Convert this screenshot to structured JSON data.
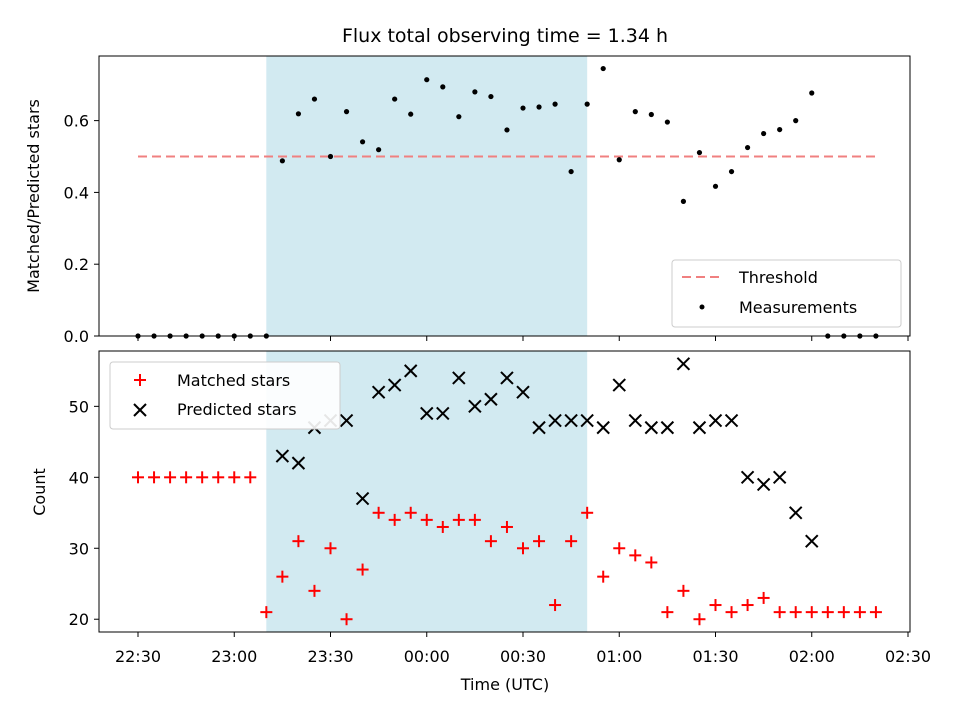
{
  "chart_data": [
    {
      "type": "scatter",
      "title": "Flux total observing time = 1.34 h",
      "ylabel": "Matched/Predicted stars",
      "xlabel": "",
      "ylim": [
        0,
        0.78
      ],
      "yticks": [
        0.0,
        0.2,
        0.4,
        0.6
      ],
      "ytick_labels": [
        "0.0",
        "0.2",
        "0.4",
        "0.6"
      ],
      "threshold": {
        "name": "Threshold",
        "y": 0.5,
        "x_start": "22:30",
        "x_end": "02:20",
        "color": "#f08080",
        "style": "dashed"
      },
      "observing_window": {
        "start": "23:10",
        "end": "00:50",
        "color": "#add8e6"
      },
      "legend": {
        "position": "lower-right",
        "entries": [
          "Threshold",
          "Measurements"
        ]
      },
      "series": [
        {
          "name": "Measurements",
          "color": "#000000",
          "marker": "dot",
          "x": [
            "22:30",
            "22:35",
            "22:40",
            "22:45",
            "22:50",
            "22:55",
            "23:00",
            "23:05",
            "23:10",
            "23:15",
            "23:20",
            "23:25",
            "23:30",
            "23:35",
            "23:40",
            "23:45",
            "23:50",
            "23:55",
            "00:00",
            "00:05",
            "00:10",
            "00:15",
            "00:20",
            "00:25",
            "00:30",
            "00:35",
            "00:40",
            "00:45",
            "00:50",
            "00:55",
            "01:00",
            "01:05",
            "01:10",
            "01:15",
            "01:20",
            "01:25",
            "01:30",
            "01:35",
            "01:40",
            "01:45",
            "01:50",
            "01:55",
            "02:00",
            "02:05",
            "02:10",
            "02:15",
            "02:20"
          ],
          "y": [
            0,
            0,
            0,
            0,
            0,
            0,
            0,
            0,
            0,
            0.488,
            0.619,
            0.66,
            0.5,
            0.625,
            0.541,
            0.519,
            0.66,
            0.618,
            0.714,
            0.694,
            0.611,
            0.68,
            0.667,
            0.574,
            0.635,
            0.638,
            0.646,
            0.458,
            0.646,
            0.745,
            0.491,
            0.625,
            0.617,
            0.596,
            0.375,
            0.511,
            0.417,
            0.458,
            0.525,
            0.564,
            0.575,
            0.6,
            0.677,
            0,
            0,
            0,
            0
          ]
        }
      ]
    },
    {
      "type": "scatter",
      "title": "",
      "xlabel": "Time (UTC)",
      "ylabel": "Count",
      "ylim": [
        18.2,
        57.8
      ],
      "yticks": [
        20,
        30,
        40,
        50
      ],
      "ytick_labels": [
        "20",
        "30",
        "40",
        "50"
      ],
      "xticks": [
        "22:30",
        "23:00",
        "23:30",
        "00:00",
        "00:30",
        "01:00",
        "01:30",
        "02:00",
        "02:30"
      ],
      "observing_window": {
        "start": "23:10",
        "end": "00:50",
        "color": "#add8e6"
      },
      "legend": {
        "position": "upper-left",
        "entries": [
          "Matched stars",
          "Predicted stars"
        ]
      },
      "series": [
        {
          "name": "Matched stars",
          "color": "#ff0000",
          "marker": "plus",
          "x": [
            "22:30",
            "22:35",
            "22:40",
            "22:45",
            "22:50",
            "22:55",
            "23:00",
            "23:05",
            "23:10",
            "23:15",
            "23:20",
            "23:25",
            "23:30",
            "23:35",
            "23:40",
            "23:45",
            "23:50",
            "23:55",
            "00:00",
            "00:05",
            "00:10",
            "00:15",
            "00:20",
            "00:25",
            "00:30",
            "00:35",
            "00:40",
            "00:45",
            "00:50",
            "00:55",
            "01:00",
            "01:05",
            "01:10",
            "01:15",
            "01:20",
            "01:25",
            "01:30",
            "01:35",
            "01:40",
            "01:45",
            "01:50",
            "01:55",
            "02:00",
            "02:05",
            "02:10",
            "02:15",
            "02:20"
          ],
          "y": [
            40,
            40,
            40,
            40,
            40,
            40,
            40,
            40,
            21,
            26,
            31,
            24,
            30,
            20,
            27,
            35,
            34,
            35,
            34,
            33,
            34,
            34,
            31,
            33,
            30,
            31,
            22,
            31,
            35,
            26,
            30,
            29,
            28,
            21,
            24,
            20,
            22,
            21,
            22,
            23,
            21,
            21,
            21,
            21,
            21,
            21,
            21
          ]
        },
        {
          "name": "Predicted stars",
          "color": "#000000",
          "marker": "x",
          "x": [
            "23:15",
            "23:20",
            "23:25",
            "23:30",
            "23:35",
            "23:40",
            "23:45",
            "23:50",
            "23:55",
            "00:00",
            "00:05",
            "00:10",
            "00:15",
            "00:20",
            "00:25",
            "00:30",
            "00:35",
            "00:40",
            "00:45",
            "00:50",
            "00:55",
            "01:00",
            "01:05",
            "01:10",
            "01:15",
            "01:20",
            "01:25",
            "01:30",
            "01:35",
            "01:40",
            "01:45",
            "01:50",
            "01:55",
            "02:00"
          ],
          "y": [
            43,
            42,
            47,
            48,
            48,
            37,
            52,
            53,
            55,
            49,
            49,
            54,
            50,
            51,
            54,
            52,
            47,
            48,
            48,
            48,
            47,
            53,
            48,
            47,
            47,
            56,
            47,
            48,
            48,
            40,
            39,
            40,
            35,
            31
          ]
        }
      ]
    }
  ]
}
